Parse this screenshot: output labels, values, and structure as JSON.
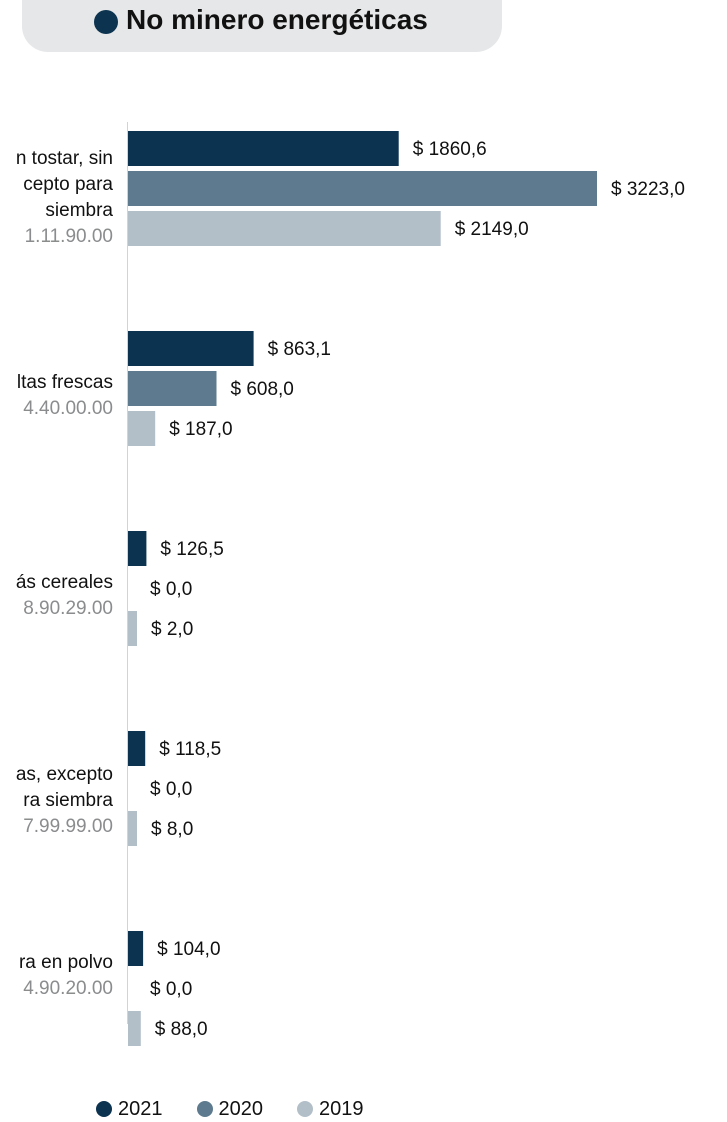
{
  "title": "No minero energéticas",
  "colors": {
    "title_dot": "#0c3350",
    "pill": "#e6e7e8"
  },
  "legend": [
    {
      "label": "2021",
      "color": "#0c3350"
    },
    {
      "label": "2020",
      "color": "#5d7a8e"
    },
    {
      "label": "2019",
      "color": "#b2bfc8"
    }
  ],
  "categories": [
    {
      "lines": [
        "n tostar, sin",
        "cepto para",
        "siembra"
      ],
      "code": "1.11.90.00"
    },
    {
      "lines": [
        "ltas frescas"
      ],
      "code": "4.40.00.00"
    },
    {
      "lines": [
        "ás cereales"
      ],
      "code": "8.90.29.00"
    },
    {
      "lines": [
        "as, excepto",
        "ra siembra"
      ],
      "code": "7.99.99.00"
    },
    {
      "lines": [
        "ra en polvo"
      ],
      "code": "4.90.20.00"
    }
  ],
  "chart_data": {
    "type": "bar",
    "orientation": "horizontal",
    "categories": [
      "1.11.90.00",
      "4.40.00.00",
      "8.90.29.00",
      "7.99.99.00",
      "4.90.20.00"
    ],
    "series": [
      {
        "name": "2021",
        "color": "#0c3350",
        "values": [
          1860.6,
          863.1,
          126.5,
          118.5,
          104.0
        ],
        "labels": [
          "$ 1860,6",
          "$ 863,1",
          "$ 126,5",
          "$ 118,5",
          "$ 104,0"
        ]
      },
      {
        "name": "2020",
        "color": "#5d7a8e",
        "values": [
          3223.0,
          608.0,
          0.0,
          0.0,
          0.0
        ],
        "labels": [
          "$ 3223,0",
          "$ 608,0",
          "$ 0,0",
          "$ 0,0",
          "$ 0,0"
        ]
      },
      {
        "name": "2019",
        "color": "#b2bfc8",
        "values": [
          2149.0,
          187.0,
          2.0,
          8.0,
          88.0
        ],
        "labels": [
          "$ 2149,0",
          "$ 187,0",
          "$ 2,0",
          "$ 8,0",
          "$ 88,0"
        ]
      }
    ],
    "legend_position": "bottom-center",
    "grid": false
  }
}
